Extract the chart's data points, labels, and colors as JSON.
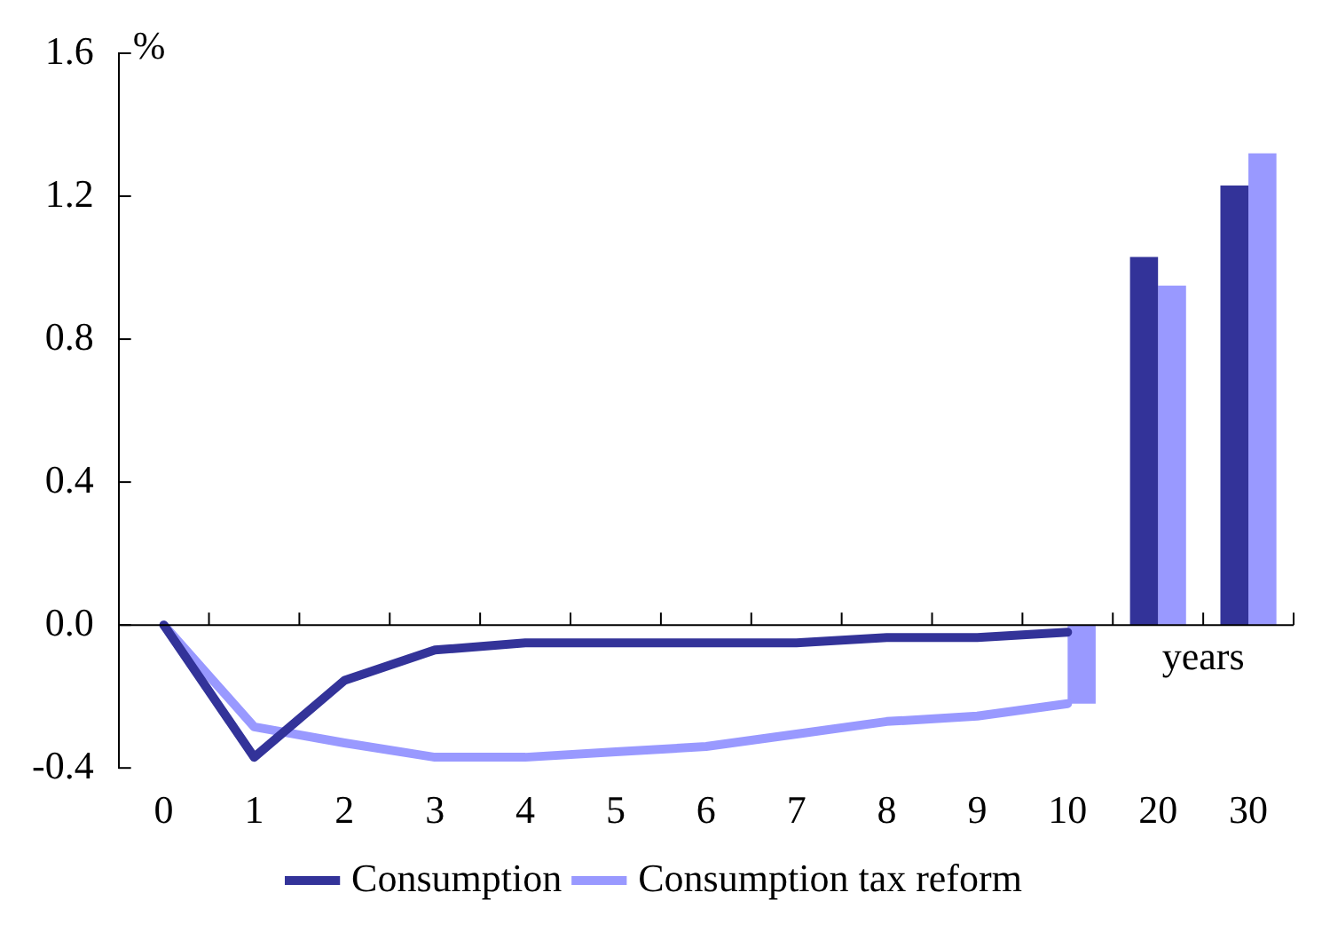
{
  "chart_data": {
    "type": "line",
    "ylabel": "%",
    "xlabel": "years",
    "categories": [
      "0",
      "1",
      "2",
      "3",
      "4",
      "5",
      "6",
      "7",
      "8",
      "9",
      "10",
      "20",
      "30"
    ],
    "ylim": [
      -0.4,
      1.6
    ],
    "yticks": [
      -0.4,
      {
        "value": 0,
        "label": "0.0"
      },
      0.4,
      0.8,
      1.2,
      1.6
    ],
    "legend": "bottom",
    "marker": "none",
    "line_style": "solid",
    "series": [
      {
        "name": "Consumption",
        "color": "#333399",
        "values": [
          0,
          -0.37,
          -0.155,
          -0.07,
          -0.05,
          -0.05,
          -0.05,
          -0.05,
          -0.035,
          -0.035,
          -0.02,
          null,
          null
        ]
      },
      {
        "name": "Consumption tax reform",
        "color": "#9999ff",
        "values": [
          0,
          -0.285,
          -0.33,
          -0.37,
          -0.37,
          -0.355,
          -0.34,
          -0.305,
          -0.27,
          -0.255,
          -0.22,
          null,
          null
        ]
      },
      {
        "type": "bar",
        "color": "#333399",
        "values": [
          null,
          null,
          null,
          null,
          null,
          null,
          null,
          null,
          null,
          null,
          null,
          1.03,
          1.23
        ]
      },
      {
        "type": "bar",
        "color": "#9999ff",
        "values": [
          null,
          null,
          null,
          null,
          null,
          null,
          null,
          null,
          null,
          null,
          -0.22,
          0.95,
          1.32
        ]
      }
    ]
  }
}
